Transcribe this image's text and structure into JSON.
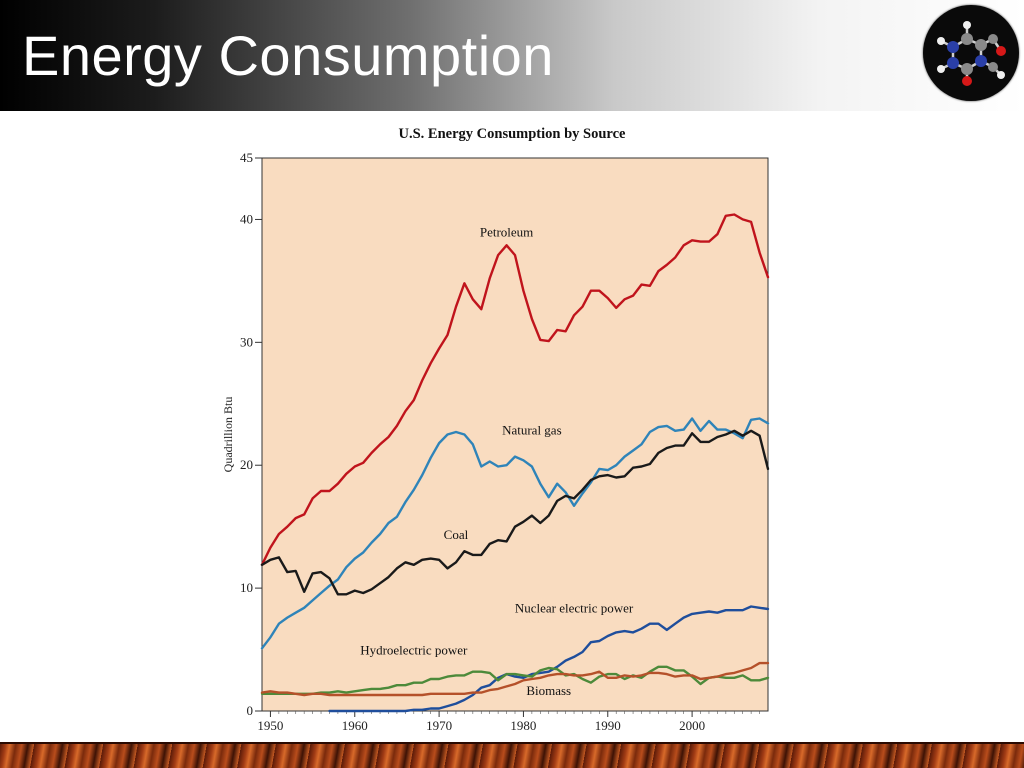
{
  "slide": {
    "title": "Energy Consumption",
    "logo_icon": "molecule-icon"
  },
  "chart_data": {
    "type": "line",
    "title": "U.S. Energy Consumption by Source",
    "xlabel": "",
    "ylabel": "Quadrillion Btu",
    "xlim": [
      1949,
      2009
    ],
    "ylim": [
      0,
      45
    ],
    "xticks": [
      1950,
      1960,
      1970,
      1980,
      1990,
      2000
    ],
    "yticks": [
      0,
      10,
      20,
      30,
      40,
      45
    ],
    "grid": false,
    "background": "#f9dcc0",
    "series": [
      {
        "name": "Petroleum",
        "color": "#c0141c",
        "label_at": [
          1978,
          38.6
        ],
        "x": [
          1949,
          1950,
          1951,
          1952,
          1953,
          1954,
          1955,
          1956,
          1957,
          1958,
          1959,
          1960,
          1961,
          1962,
          1963,
          1964,
          1965,
          1966,
          1967,
          1968,
          1969,
          1970,
          1971,
          1972,
          1973,
          1974,
          1975,
          1976,
          1977,
          1978,
          1979,
          1980,
          1981,
          1982,
          1983,
          1984,
          1985,
          1986,
          1987,
          1988,
          1989,
          1990,
          1991,
          1992,
          1993,
          1994,
          1995,
          1996,
          1997,
          1998,
          1999,
          2000,
          2001,
          2002,
          2003,
          2004,
          2005,
          2006,
          2007,
          2008,
          2009
        ],
        "values": [
          11.9,
          13.3,
          14.4,
          15.0,
          15.7,
          16.0,
          17.3,
          17.9,
          17.9,
          18.5,
          19.3,
          19.9,
          20.2,
          21.0,
          21.7,
          22.3,
          23.2,
          24.4,
          25.3,
          26.9,
          28.3,
          29.5,
          30.6,
          32.9,
          34.8,
          33.5,
          32.7,
          35.2,
          37.1,
          37.9,
          37.1,
          34.2,
          31.9,
          30.2,
          30.1,
          31.0,
          30.9,
          32.2,
          32.9,
          34.2,
          34.2,
          33.6,
          32.8,
          33.5,
          33.8,
          34.7,
          34.6,
          35.8,
          36.3,
          36.9,
          37.9,
          38.3,
          38.2,
          38.2,
          38.8,
          40.3,
          40.4,
          40.0,
          39.8,
          37.3,
          35.3
        ]
      },
      {
        "name": "Natural gas",
        "color": "#2f84b9",
        "label_at": [
          1981,
          22.5
        ],
        "x": [
          1949,
          1950,
          1951,
          1952,
          1953,
          1954,
          1955,
          1956,
          1957,
          1958,
          1959,
          1960,
          1961,
          1962,
          1963,
          1964,
          1965,
          1966,
          1967,
          1968,
          1969,
          1970,
          1971,
          1972,
          1973,
          1974,
          1975,
          1976,
          1977,
          1978,
          1979,
          1980,
          1981,
          1982,
          1983,
          1984,
          1985,
          1986,
          1987,
          1988,
          1989,
          1990,
          1991,
          1992,
          1993,
          1994,
          1995,
          1996,
          1997,
          1998,
          1999,
          2000,
          2001,
          2002,
          2003,
          2004,
          2005,
          2006,
          2007,
          2008,
          2009
        ],
        "values": [
          5.1,
          6.0,
          7.1,
          7.6,
          8.0,
          8.4,
          9.0,
          9.6,
          10.2,
          10.7,
          11.7,
          12.4,
          12.9,
          13.7,
          14.4,
          15.3,
          15.8,
          17.0,
          18.0,
          19.2,
          20.6,
          21.8,
          22.5,
          22.7,
          22.5,
          21.7,
          19.9,
          20.3,
          19.9,
          20.0,
          20.7,
          20.4,
          19.9,
          18.5,
          17.4,
          18.5,
          17.8,
          16.7,
          17.7,
          18.6,
          19.7,
          19.6,
          20.0,
          20.7,
          21.2,
          21.7,
          22.7,
          23.1,
          23.2,
          22.8,
          22.9,
          23.8,
          22.8,
          23.6,
          22.9,
          22.9,
          22.6,
          22.2,
          23.7,
          23.8,
          23.4
        ]
      },
      {
        "name": "Coal",
        "color": "#1a1a1a",
        "label_at": [
          1972,
          14.0
        ],
        "x": [
          1949,
          1950,
          1951,
          1952,
          1953,
          1954,
          1955,
          1956,
          1957,
          1958,
          1959,
          1960,
          1961,
          1962,
          1963,
          1964,
          1965,
          1966,
          1967,
          1968,
          1969,
          1970,
          1971,
          1972,
          1973,
          1974,
          1975,
          1976,
          1977,
          1978,
          1979,
          1980,
          1981,
          1982,
          1983,
          1984,
          1985,
          1986,
          1987,
          1988,
          1989,
          1990,
          1991,
          1992,
          1993,
          1994,
          1995,
          1996,
          1997,
          1998,
          1999,
          2000,
          2001,
          2002,
          2003,
          2004,
          2005,
          2006,
          2007,
          2008,
          2009
        ],
        "values": [
          11.9,
          12.3,
          12.5,
          11.3,
          11.4,
          9.7,
          11.2,
          11.3,
          10.8,
          9.5,
          9.5,
          9.8,
          9.6,
          9.9,
          10.4,
          10.9,
          11.6,
          12.1,
          11.9,
          12.3,
          12.4,
          12.3,
          11.6,
          12.1,
          13.0,
          12.7,
          12.7,
          13.6,
          13.9,
          13.8,
          15.0,
          15.4,
          15.9,
          15.3,
          15.9,
          17.1,
          17.5,
          17.3,
          18.0,
          18.8,
          19.1,
          19.2,
          19.0,
          19.1,
          19.8,
          19.9,
          20.1,
          21.0,
          21.4,
          21.6,
          21.6,
          22.6,
          21.9,
          21.9,
          22.3,
          22.5,
          22.8,
          22.4,
          22.8,
          22.4,
          19.7
        ]
      },
      {
        "name": "Nuclear electric power",
        "color": "#1f4e9c",
        "label_at": [
          1986,
          8.0
        ],
        "x": [
          1957,
          1958,
          1959,
          1960,
          1961,
          1962,
          1963,
          1964,
          1965,
          1966,
          1967,
          1968,
          1969,
          1970,
          1971,
          1972,
          1973,
          1974,
          1975,
          1976,
          1977,
          1978,
          1979,
          1980,
          1981,
          1982,
          1983,
          1984,
          1985,
          1986,
          1987,
          1988,
          1989,
          1990,
          1991,
          1992,
          1993,
          1994,
          1995,
          1996,
          1997,
          1998,
          1999,
          2000,
          2001,
          2002,
          2003,
          2004,
          2005,
          2006,
          2007,
          2008,
          2009
        ],
        "values": [
          0.0,
          0.0,
          0.0,
          0.0,
          0.0,
          0.0,
          0.0,
          0.0,
          0.0,
          0.0,
          0.1,
          0.1,
          0.2,
          0.2,
          0.4,
          0.6,
          0.9,
          1.3,
          1.9,
          2.1,
          2.7,
          3.0,
          2.8,
          2.7,
          3.0,
          3.1,
          3.2,
          3.6,
          4.1,
          4.4,
          4.8,
          5.6,
          5.7,
          6.1,
          6.4,
          6.5,
          6.4,
          6.7,
          7.1,
          7.1,
          6.6,
          7.1,
          7.6,
          7.9,
          8.0,
          8.1,
          8.0,
          8.2,
          8.2,
          8.2,
          8.5,
          8.4,
          8.3
        ]
      },
      {
        "name": "Hydroelectric power",
        "color": "#4d8a3a",
        "label_at": [
          1967,
          4.6
        ],
        "x": [
          1949,
          1950,
          1951,
          1952,
          1953,
          1954,
          1955,
          1956,
          1957,
          1958,
          1959,
          1960,
          1961,
          1962,
          1963,
          1964,
          1965,
          1966,
          1967,
          1968,
          1969,
          1970,
          1971,
          1972,
          1973,
          1974,
          1975,
          1976,
          1977,
          1978,
          1979,
          1980,
          1981,
          1982,
          1983,
          1984,
          1985,
          1986,
          1987,
          1988,
          1989,
          1990,
          1991,
          1992,
          1993,
          1994,
          1995,
          1996,
          1997,
          1998,
          1999,
          2000,
          2001,
          2002,
          2003,
          2004,
          2005,
          2006,
          2007,
          2008,
          2009
        ],
        "values": [
          1.4,
          1.4,
          1.4,
          1.4,
          1.4,
          1.4,
          1.4,
          1.5,
          1.5,
          1.6,
          1.5,
          1.6,
          1.7,
          1.8,
          1.8,
          1.9,
          2.1,
          2.1,
          2.3,
          2.3,
          2.6,
          2.6,
          2.8,
          2.9,
          2.9,
          3.2,
          3.2,
          3.1,
          2.5,
          3.0,
          3.0,
          2.9,
          2.8,
          3.3,
          3.5,
          3.4,
          2.9,
          3.0,
          2.6,
          2.3,
          2.8,
          3.0,
          3.0,
          2.6,
          2.9,
          2.7,
          3.2,
          3.6,
          3.6,
          3.3,
          3.3,
          2.8,
          2.2,
          2.7,
          2.8,
          2.7,
          2.7,
          2.9,
          2.5,
          2.5,
          2.7
        ]
      },
      {
        "name": "Biomass",
        "color": "#b5512a",
        "label_at": [
          1983,
          1.3
        ],
        "x": [
          1949,
          1950,
          1951,
          1952,
          1953,
          1954,
          1955,
          1956,
          1957,
          1958,
          1959,
          1960,
          1961,
          1962,
          1963,
          1964,
          1965,
          1966,
          1967,
          1968,
          1969,
          1970,
          1971,
          1972,
          1973,
          1974,
          1975,
          1976,
          1977,
          1978,
          1979,
          1980,
          1981,
          1982,
          1983,
          1984,
          1985,
          1986,
          1987,
          1988,
          1989,
          1990,
          1991,
          1992,
          1993,
          1994,
          1995,
          1996,
          1997,
          1998,
          1999,
          2000,
          2001,
          2002,
          2003,
          2004,
          2005,
          2006,
          2007,
          2008,
          2009
        ],
        "values": [
          1.5,
          1.6,
          1.5,
          1.5,
          1.4,
          1.3,
          1.4,
          1.4,
          1.3,
          1.3,
          1.3,
          1.3,
          1.3,
          1.3,
          1.3,
          1.3,
          1.3,
          1.3,
          1.3,
          1.3,
          1.4,
          1.4,
          1.4,
          1.4,
          1.4,
          1.5,
          1.5,
          1.7,
          1.8,
          2.0,
          2.2,
          2.5,
          2.6,
          2.7,
          2.9,
          3.0,
          3.0,
          2.9,
          2.9,
          3.0,
          3.2,
          2.7,
          2.7,
          2.9,
          2.8,
          2.9,
          3.1,
          3.1,
          3.0,
          2.8,
          2.9,
          2.9,
          2.6,
          2.7,
          2.8,
          3.0,
          3.1,
          3.3,
          3.5,
          3.9,
          3.9
        ]
      }
    ]
  }
}
